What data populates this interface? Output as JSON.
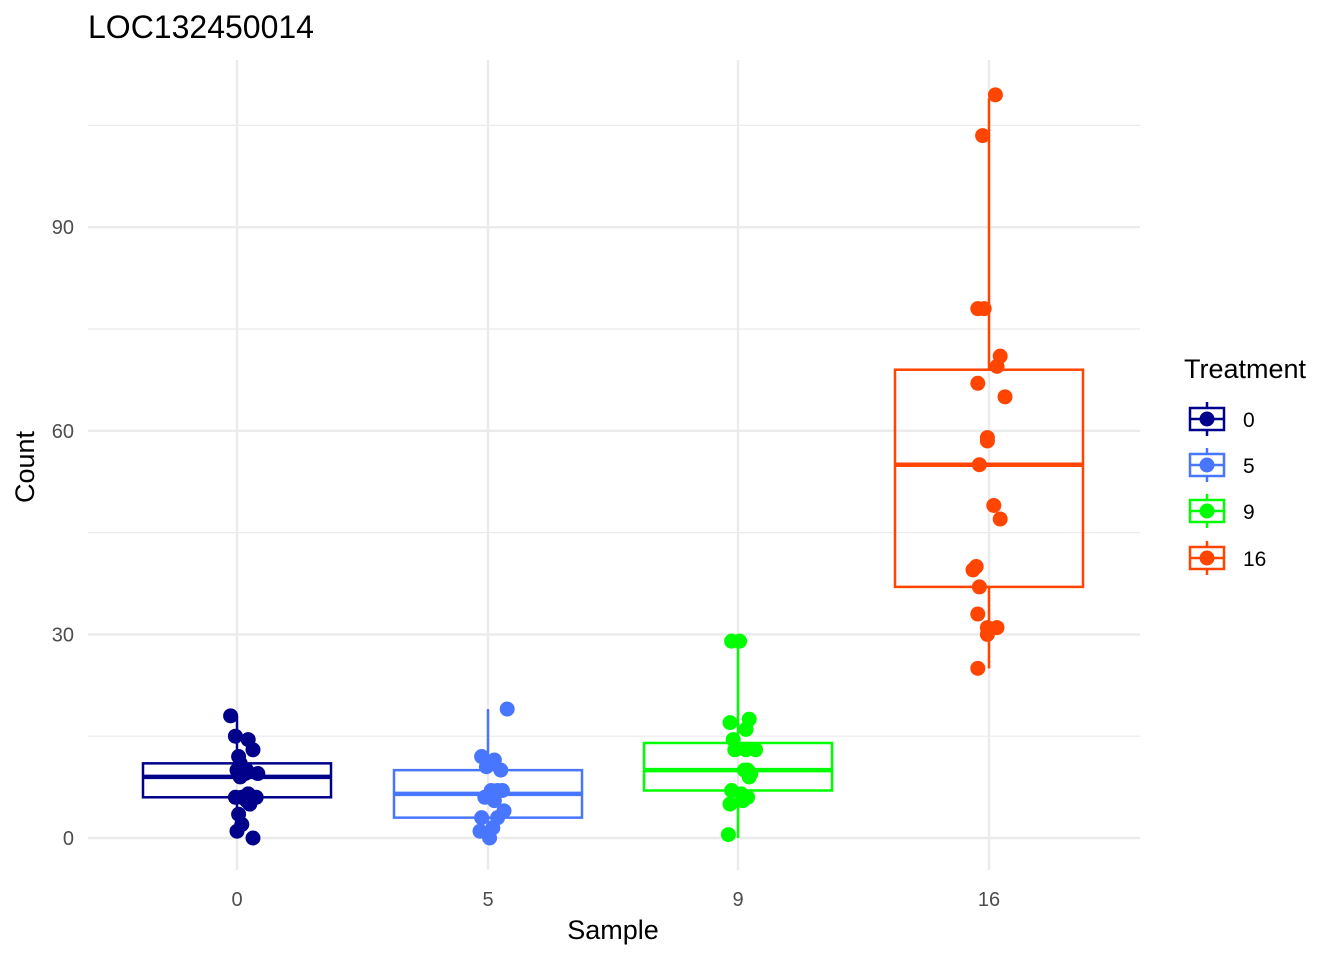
{
  "chart_data": {
    "type": "box",
    "title": "LOC132450014",
    "xlabel": "Sample",
    "ylabel": "Count",
    "categories": [
      "0",
      "5",
      "9",
      "16"
    ],
    "y_ticks": [
      "0",
      "30",
      "60",
      "90"
    ],
    "ylim": [
      -5,
      114
    ],
    "grid": true,
    "legend": {
      "title": "Treatment",
      "position": "right",
      "entries": [
        "0",
        "5",
        "9",
        "16"
      ]
    },
    "series": [
      {
        "name": "0",
        "color": "#00008B",
        "box": {
          "whisker_low": 0,
          "q1": 6,
          "median": 9,
          "q3": 11,
          "whisker_high": 18
        },
        "points": [
          [
            0.56,
            18
          ],
          [
            0.59,
            15
          ],
          [
            0.61,
            12
          ],
          [
            0.62,
            11
          ],
          [
            0.6,
            10
          ],
          [
            0.62,
            9
          ],
          [
            0.65,
            9.5
          ],
          [
            0.67,
            14.5
          ],
          [
            0.7,
            13
          ],
          [
            0.73,
            9.5
          ],
          [
            0.66,
            10
          ],
          [
            0.67,
            6.5
          ],
          [
            0.63,
            6
          ],
          [
            0.59,
            6
          ],
          [
            0.72,
            6
          ],
          [
            0.68,
            5
          ],
          [
            0.66,
            5.5
          ],
          [
            0.61,
            3.5
          ],
          [
            0.63,
            2
          ],
          [
            0.6,
            1
          ],
          [
            0.7,
            0
          ]
        ]
      },
      {
        "name": "5",
        "color": "#4876FF",
        "box": {
          "whisker_low": 0,
          "q1": 3,
          "median": 6.5,
          "q3": 10,
          "whisker_high": 19
        },
        "points": [
          [
            1.56,
            12
          ],
          [
            1.64,
            11.5
          ],
          [
            1.59,
            10.5
          ],
          [
            1.68,
            10
          ],
          [
            1.72,
            19
          ],
          [
            1.62,
            7
          ],
          [
            1.66,
            7
          ],
          [
            1.69,
            7
          ],
          [
            1.58,
            6
          ],
          [
            1.64,
            5.5
          ],
          [
            1.56,
            3
          ],
          [
            1.66,
            3
          ],
          [
            1.7,
            4
          ],
          [
            1.63,
            1.5
          ],
          [
            1.55,
            1
          ],
          [
            1.61,
            0
          ]
        ]
      },
      {
        "name": "9",
        "color": "#00FF00",
        "box": {
          "whisker_low": 0,
          "q1": 7,
          "median": 10,
          "q3": 14,
          "whisker_high": 29
        },
        "points": [
          [
            2.56,
            29
          ],
          [
            2.61,
            29
          ],
          [
            2.55,
            17
          ],
          [
            2.67,
            17.5
          ],
          [
            2.65,
            16
          ],
          [
            2.57,
            14.5
          ],
          [
            2.58,
            13
          ],
          [
            2.65,
            13
          ],
          [
            2.71,
            13
          ],
          [
            2.64,
            10
          ],
          [
            2.66,
            10
          ],
          [
            2.68,
            9.5
          ],
          [
            2.67,
            9
          ],
          [
            2.56,
            7
          ],
          [
            2.62,
            6.5
          ],
          [
            2.66,
            6
          ],
          [
            2.63,
            5.5
          ],
          [
            2.55,
            5
          ],
          [
            2.54,
            0.5
          ]
        ]
      },
      {
        "name": "16",
        "color": "#FF4500",
        "box": {
          "whisker_low": 25,
          "q1": 37,
          "median": 55,
          "q3": 69,
          "whisker_high": 109
        },
        "points": [
          [
            3.64,
            109.5
          ],
          [
            3.56,
            103.5
          ],
          [
            3.53,
            78
          ],
          [
            3.57,
            78
          ],
          [
            3.67,
            71
          ],
          [
            3.65,
            69.5
          ],
          [
            3.53,
            67
          ],
          [
            3.7,
            65
          ],
          [
            3.59,
            59
          ],
          [
            3.59,
            58.5
          ],
          [
            3.54,
            55
          ],
          [
            3.63,
            49
          ],
          [
            3.67,
            47
          ],
          [
            3.5,
            39.5
          ],
          [
            3.52,
            40
          ],
          [
            3.54,
            37
          ],
          [
            3.53,
            33
          ],
          [
            3.59,
            31
          ],
          [
            3.59,
            30
          ],
          [
            3.65,
            31
          ],
          [
            3.53,
            25
          ]
        ]
      }
    ]
  }
}
